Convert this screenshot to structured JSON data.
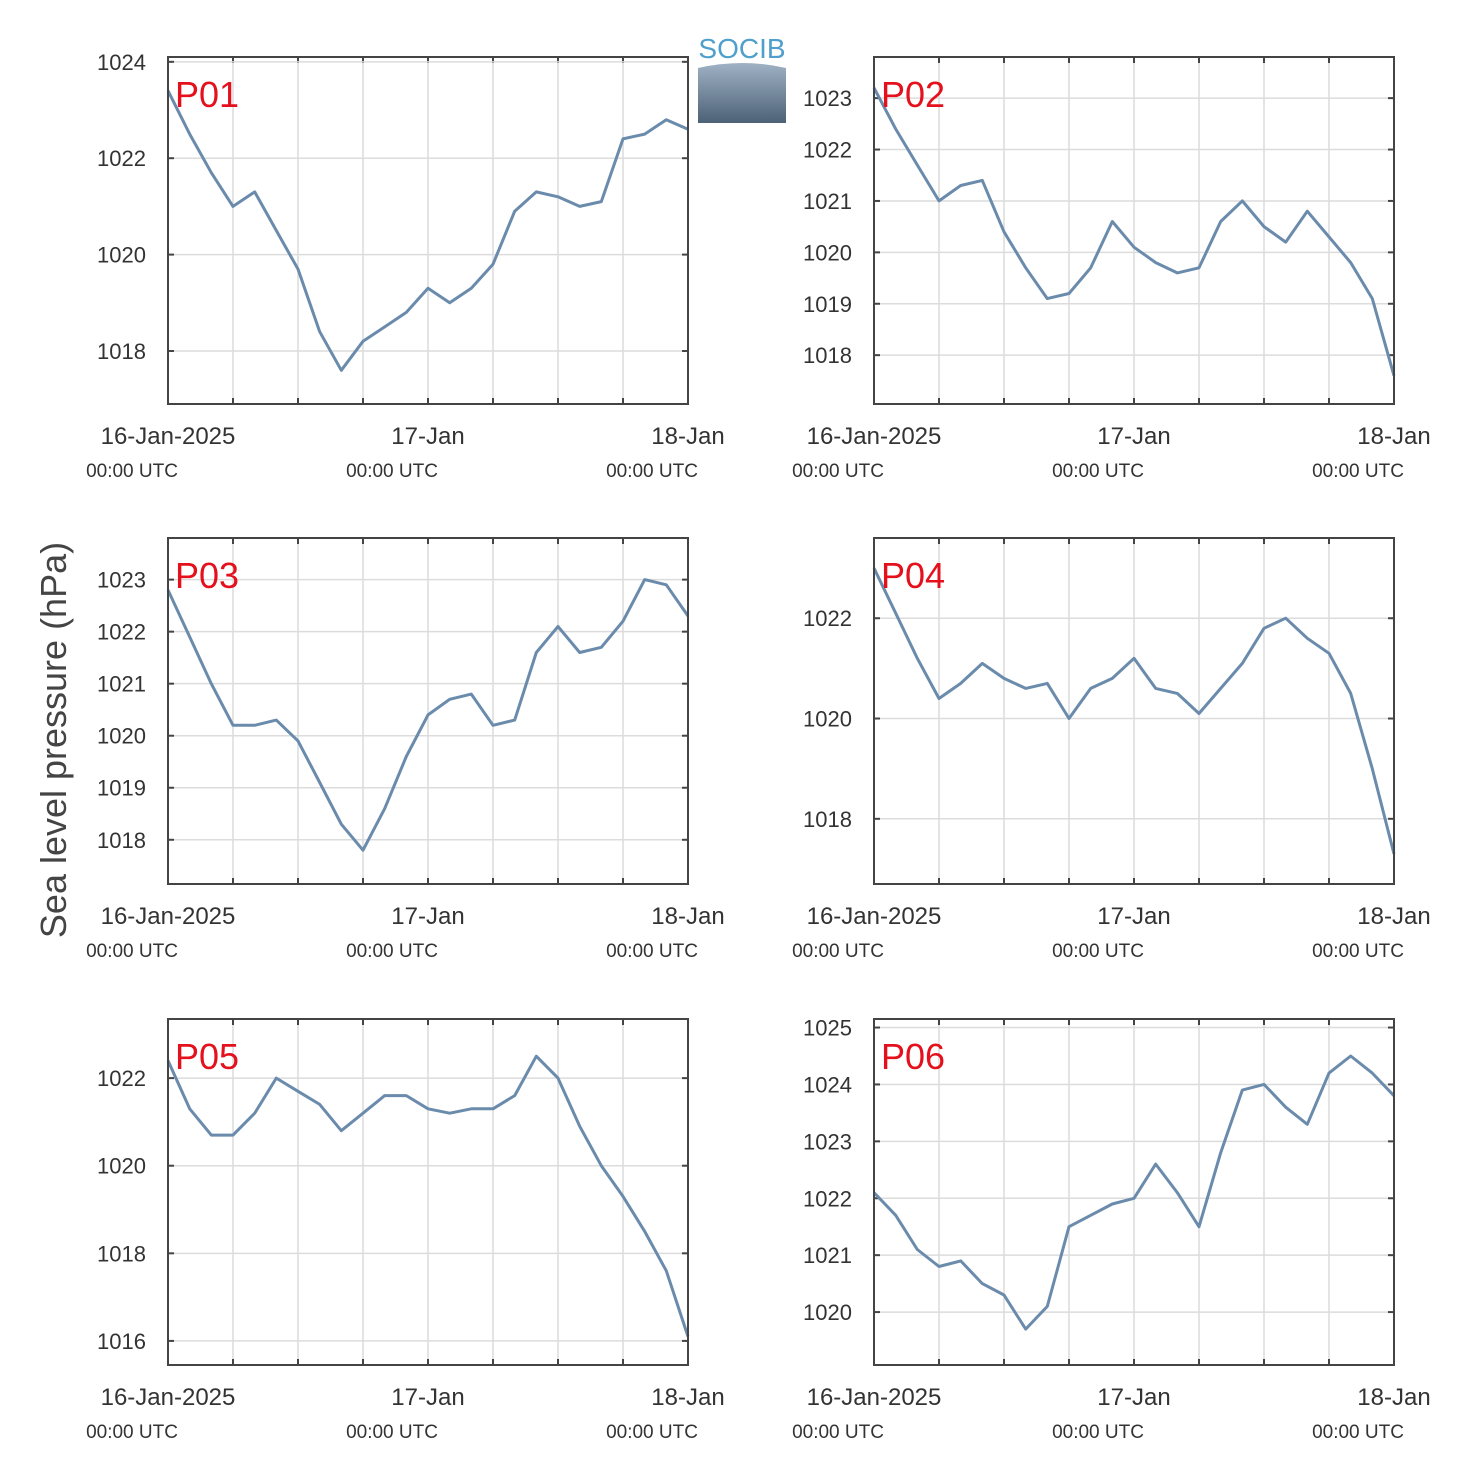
{
  "ylabel": "Sea level pressure (hPa)",
  "logo": "SOCIB",
  "chart_data": [
    {
      "type": "line",
      "title": "P01",
      "color": "#6a8bab",
      "grid": true,
      "x": [
        "2025-01-16T00:00",
        "2025-01-16T02:00",
        "2025-01-16T04:00",
        "2025-01-16T06:00",
        "2025-01-16T08:00",
        "2025-01-16T10:00",
        "2025-01-16T12:00",
        "2025-01-16T14:00",
        "2025-01-16T16:00",
        "2025-01-16T18:00",
        "2025-01-16T20:00",
        "2025-01-16T22:00",
        "2025-01-17T00:00",
        "2025-01-17T02:00",
        "2025-01-17T04:00",
        "2025-01-17T06:00",
        "2025-01-17T08:00",
        "2025-01-17T10:00",
        "2025-01-17T12:00",
        "2025-01-17T14:00",
        "2025-01-17T16:00",
        "2025-01-17T18:00",
        "2025-01-17T20:00",
        "2025-01-17T22:00",
        "2025-01-18T00:00"
      ],
      "values": [
        1023.4,
        1022.5,
        1021.7,
        1021.0,
        1021.3,
        1020.5,
        1019.7,
        1018.4,
        1017.6,
        1018.2,
        1018.5,
        1018.8,
        1019.3,
        1019.0,
        1019.3,
        1019.8,
        1020.9,
        1021.3,
        1021.2,
        1021.0,
        1021.1,
        1022.4,
        1022.5,
        1022.8,
        1022.6
      ],
      "xlim": [
        "2025-01-16T00:00",
        "2025-01-18T00:00"
      ],
      "xticks": [
        {
          "value": "2025-01-16T00:00",
          "label": [
            "16-Jan-2025",
            "00:00 UTC"
          ]
        },
        {
          "value": "2025-01-16T06:00",
          "label": null
        },
        {
          "value": "2025-01-16T12:00",
          "label": null
        },
        {
          "value": "2025-01-16T18:00",
          "label": null
        },
        {
          "value": "2025-01-17T00:00",
          "label": [
            "17-Jan",
            "00:00 UTC"
          ]
        },
        {
          "value": "2025-01-17T06:00",
          "label": null
        },
        {
          "value": "2025-01-17T12:00",
          "label": null
        },
        {
          "value": "2025-01-17T18:00",
          "label": null
        },
        {
          "value": "2025-01-18T00:00",
          "label": [
            "18-Jan",
            "00:00 UTC"
          ]
        }
      ],
      "ylim": [
        1016.9,
        1024.1
      ],
      "yticks": [
        1018,
        1020,
        1022,
        1024
      ]
    },
    {
      "type": "line",
      "title": "P02",
      "color": "#6a8bab",
      "grid": true,
      "x": [
        "2025-01-16T00:00",
        "2025-01-16T02:00",
        "2025-01-16T04:00",
        "2025-01-16T06:00",
        "2025-01-16T08:00",
        "2025-01-16T10:00",
        "2025-01-16T12:00",
        "2025-01-16T14:00",
        "2025-01-16T16:00",
        "2025-01-16T18:00",
        "2025-01-16T20:00",
        "2025-01-16T22:00",
        "2025-01-17T00:00",
        "2025-01-17T02:00",
        "2025-01-17T04:00",
        "2025-01-17T06:00",
        "2025-01-17T08:00",
        "2025-01-17T10:00",
        "2025-01-17T12:00",
        "2025-01-17T14:00",
        "2025-01-17T16:00",
        "2025-01-17T18:00",
        "2025-01-17T20:00",
        "2025-01-17T22:00",
        "2025-01-18T00:00"
      ],
      "values": [
        1023.2,
        1022.4,
        1021.7,
        1021.0,
        1021.3,
        1021.4,
        1020.4,
        1019.7,
        1019.1,
        1019.2,
        1019.7,
        1020.6,
        1020.1,
        1019.8,
        1019.6,
        1019.7,
        1020.6,
        1021.0,
        1020.5,
        1020.2,
        1020.8,
        1020.3,
        1019.8,
        1019.1,
        1017.6
      ],
      "xlim": [
        "2025-01-16T00:00",
        "2025-01-18T00:00"
      ],
      "xticks": [
        {
          "value": "2025-01-16T00:00",
          "label": [
            "16-Jan-2025",
            "00:00 UTC"
          ]
        },
        {
          "value": "2025-01-16T06:00",
          "label": null
        },
        {
          "value": "2025-01-16T12:00",
          "label": null
        },
        {
          "value": "2025-01-16T18:00",
          "label": null
        },
        {
          "value": "2025-01-17T00:00",
          "label": [
            "17-Jan",
            "00:00 UTC"
          ]
        },
        {
          "value": "2025-01-17T06:00",
          "label": null
        },
        {
          "value": "2025-01-17T12:00",
          "label": null
        },
        {
          "value": "2025-01-17T18:00",
          "label": null
        },
        {
          "value": "2025-01-18T00:00",
          "label": [
            "18-Jan",
            "00:00 UTC"
          ]
        }
      ],
      "ylim": [
        1017.05,
        1023.8
      ],
      "yticks": [
        1018,
        1019,
        1020,
        1021,
        1022,
        1023
      ]
    },
    {
      "type": "line",
      "title": "P03",
      "color": "#6a8bab",
      "grid": true,
      "x": [
        "2025-01-16T00:00",
        "2025-01-16T02:00",
        "2025-01-16T04:00",
        "2025-01-16T06:00",
        "2025-01-16T08:00",
        "2025-01-16T10:00",
        "2025-01-16T12:00",
        "2025-01-16T14:00",
        "2025-01-16T16:00",
        "2025-01-16T18:00",
        "2025-01-16T20:00",
        "2025-01-16T22:00",
        "2025-01-17T00:00",
        "2025-01-17T02:00",
        "2025-01-17T04:00",
        "2025-01-17T06:00",
        "2025-01-17T08:00",
        "2025-01-17T10:00",
        "2025-01-17T12:00",
        "2025-01-17T14:00",
        "2025-01-17T16:00",
        "2025-01-17T18:00",
        "2025-01-17T20:00",
        "2025-01-17T22:00",
        "2025-01-18T00:00"
      ],
      "values": [
        1022.8,
        1021.9,
        1021.0,
        1020.2,
        1020.2,
        1020.3,
        1019.9,
        1019.1,
        1018.3,
        1017.8,
        1018.6,
        1019.6,
        1020.4,
        1020.7,
        1020.8,
        1020.2,
        1020.3,
        1021.6,
        1022.1,
        1021.6,
        1021.7,
        1022.2,
        1023.0,
        1022.9,
        1022.3
      ],
      "xlim": [
        "2025-01-16T00:00",
        "2025-01-18T00:00"
      ],
      "xticks": [
        {
          "value": "2025-01-16T00:00",
          "label": [
            "16-Jan-2025",
            "00:00 UTC"
          ]
        },
        {
          "value": "2025-01-16T06:00",
          "label": null
        },
        {
          "value": "2025-01-16T12:00",
          "label": null
        },
        {
          "value": "2025-01-16T18:00",
          "label": null
        },
        {
          "value": "2025-01-17T00:00",
          "label": [
            "17-Jan",
            "00:00 UTC"
          ]
        },
        {
          "value": "2025-01-17T06:00",
          "label": null
        },
        {
          "value": "2025-01-17T12:00",
          "label": null
        },
        {
          "value": "2025-01-17T18:00",
          "label": null
        },
        {
          "value": "2025-01-18T00:00",
          "label": [
            "18-Jan",
            "00:00 UTC"
          ]
        }
      ],
      "ylim": [
        1017.15,
        1023.8
      ],
      "yticks": [
        1018,
        1019,
        1020,
        1021,
        1022,
        1023
      ]
    },
    {
      "type": "line",
      "title": "P04",
      "color": "#6a8bab",
      "grid": true,
      "x": [
        "2025-01-16T00:00",
        "2025-01-16T02:00",
        "2025-01-16T04:00",
        "2025-01-16T06:00",
        "2025-01-16T08:00",
        "2025-01-16T10:00",
        "2025-01-16T12:00",
        "2025-01-16T14:00",
        "2025-01-16T16:00",
        "2025-01-16T18:00",
        "2025-01-16T20:00",
        "2025-01-16T22:00",
        "2025-01-17T00:00",
        "2025-01-17T02:00",
        "2025-01-17T04:00",
        "2025-01-17T06:00",
        "2025-01-17T08:00",
        "2025-01-17T10:00",
        "2025-01-17T12:00",
        "2025-01-17T14:00",
        "2025-01-17T16:00",
        "2025-01-17T18:00",
        "2025-01-17T20:00",
        "2025-01-17T22:00",
        "2025-01-18T00:00"
      ],
      "values": [
        1023.0,
        1022.1,
        1021.2,
        1020.4,
        1020.7,
        1021.1,
        1020.8,
        1020.6,
        1020.7,
        1020.0,
        1020.6,
        1020.8,
        1021.2,
        1020.6,
        1020.5,
        1020.1,
        1020.6,
        1021.1,
        1021.8,
        1022.0,
        1021.6,
        1021.3,
        1020.5,
        1019.0,
        1017.3
      ],
      "xlim": [
        "2025-01-16T00:00",
        "2025-01-18T00:00"
      ],
      "xticks": [
        {
          "value": "2025-01-16T00:00",
          "label": [
            "16-Jan-2025",
            "00:00 UTC"
          ]
        },
        {
          "value": "2025-01-16T06:00",
          "label": null
        },
        {
          "value": "2025-01-16T12:00",
          "label": null
        },
        {
          "value": "2025-01-16T18:00",
          "label": null
        },
        {
          "value": "2025-01-17T00:00",
          "label": [
            "17-Jan",
            "00:00 UTC"
          ]
        },
        {
          "value": "2025-01-17T06:00",
          "label": null
        },
        {
          "value": "2025-01-17T12:00",
          "label": null
        },
        {
          "value": "2025-01-17T18:00",
          "label": null
        },
        {
          "value": "2025-01-18T00:00",
          "label": [
            "18-Jan",
            "00:00 UTC"
          ]
        }
      ],
      "ylim": [
        1016.7,
        1023.6
      ],
      "yticks": [
        1018,
        1020,
        1022
      ]
    },
    {
      "type": "line",
      "title": "P05",
      "color": "#6a8bab",
      "grid": true,
      "x": [
        "2025-01-16T00:00",
        "2025-01-16T02:00",
        "2025-01-16T04:00",
        "2025-01-16T06:00",
        "2025-01-16T08:00",
        "2025-01-16T10:00",
        "2025-01-16T12:00",
        "2025-01-16T14:00",
        "2025-01-16T16:00",
        "2025-01-16T18:00",
        "2025-01-16T20:00",
        "2025-01-16T22:00",
        "2025-01-17T00:00",
        "2025-01-17T02:00",
        "2025-01-17T04:00",
        "2025-01-17T06:00",
        "2025-01-17T08:00",
        "2025-01-17T10:00",
        "2025-01-17T12:00",
        "2025-01-17T14:00",
        "2025-01-17T16:00",
        "2025-01-17T18:00",
        "2025-01-17T20:00",
        "2025-01-17T22:00",
        "2025-01-18T00:00"
      ],
      "values": [
        1022.4,
        1021.3,
        1020.7,
        1020.7,
        1021.2,
        1022.0,
        1021.7,
        1021.4,
        1020.8,
        1021.2,
        1021.6,
        1021.6,
        1021.3,
        1021.2,
        1021.3,
        1021.3,
        1021.6,
        1022.5,
        1022.0,
        1020.9,
        1020.0,
        1019.3,
        1018.5,
        1017.6,
        1016.1
      ],
      "xlim": [
        "2025-01-16T00:00",
        "2025-01-18T00:00"
      ],
      "xticks": [
        {
          "value": "2025-01-16T00:00",
          "label": [
            "16-Jan-2025",
            "00:00 UTC"
          ]
        },
        {
          "value": "2025-01-16T06:00",
          "label": null
        },
        {
          "value": "2025-01-16T12:00",
          "label": null
        },
        {
          "value": "2025-01-16T18:00",
          "label": null
        },
        {
          "value": "2025-01-17T00:00",
          "label": [
            "17-Jan",
            "00:00 UTC"
          ]
        },
        {
          "value": "2025-01-17T06:00",
          "label": null
        },
        {
          "value": "2025-01-17T12:00",
          "label": null
        },
        {
          "value": "2025-01-17T18:00",
          "label": null
        },
        {
          "value": "2025-01-18T00:00",
          "label": [
            "18-Jan",
            "00:00 UTC"
          ]
        }
      ],
      "ylim": [
        1015.45,
        1023.35
      ],
      "yticks": [
        1016,
        1018,
        1020,
        1022
      ]
    },
    {
      "type": "line",
      "title": "P06",
      "color": "#6a8bab",
      "grid": true,
      "x": [
        "2025-01-16T00:00",
        "2025-01-16T02:00",
        "2025-01-16T04:00",
        "2025-01-16T06:00",
        "2025-01-16T08:00",
        "2025-01-16T10:00",
        "2025-01-16T12:00",
        "2025-01-16T14:00",
        "2025-01-16T16:00",
        "2025-01-16T18:00",
        "2025-01-16T20:00",
        "2025-01-16T22:00",
        "2025-01-17T00:00",
        "2025-01-17T02:00",
        "2025-01-17T04:00",
        "2025-01-17T06:00",
        "2025-01-17T08:00",
        "2025-01-17T10:00",
        "2025-01-17T12:00",
        "2025-01-17T14:00",
        "2025-01-17T16:00",
        "2025-01-17T18:00",
        "2025-01-17T20:00",
        "2025-01-17T22:00",
        "2025-01-18T00:00"
      ],
      "values": [
        1022.1,
        1021.7,
        1021.1,
        1020.8,
        1020.9,
        1020.5,
        1020.3,
        1019.7,
        1020.1,
        1021.5,
        1021.7,
        1021.9,
        1022.0,
        1022.6,
        1022.1,
        1021.5,
        1022.8,
        1023.9,
        1024.0,
        1023.6,
        1023.3,
        1024.2,
        1024.5,
        1024.2,
        1023.8
      ],
      "xlim": [
        "2025-01-16T00:00",
        "2025-01-18T00:00"
      ],
      "xticks": [
        {
          "value": "2025-01-16T00:00",
          "label": [
            "16-Jan-2025",
            "00:00 UTC"
          ]
        },
        {
          "value": "2025-01-16T06:00",
          "label": null
        },
        {
          "value": "2025-01-16T12:00",
          "label": null
        },
        {
          "value": "2025-01-16T18:00",
          "label": null
        },
        {
          "value": "2025-01-17T00:00",
          "label": [
            "17-Jan",
            "00:00 UTC"
          ]
        },
        {
          "value": "2025-01-17T06:00",
          "label": null
        },
        {
          "value": "2025-01-17T12:00",
          "label": null
        },
        {
          "value": "2025-01-17T18:00",
          "label": null
        },
        {
          "value": "2025-01-18T00:00",
          "label": [
            "18-Jan",
            "00:00 UTC"
          ]
        }
      ],
      "ylim": [
        1019.07,
        1025.15
      ],
      "yticks": [
        1020,
        1021,
        1022,
        1023,
        1024,
        1025
      ]
    }
  ]
}
